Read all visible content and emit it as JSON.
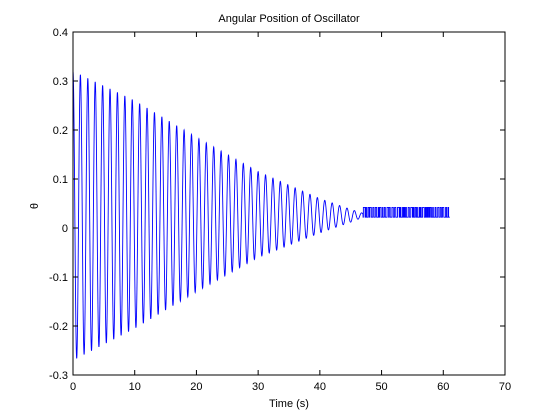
{
  "chart_data": {
    "type": "line",
    "title": "Angular Position of Oscillator",
    "xlabel": "Time (s)",
    "ylabel": "θ",
    "xlim": [
      0,
      70
    ],
    "ylim": [
      -0.3,
      0.4
    ],
    "xticks": [
      "0",
      "10",
      "20",
      "30",
      "40",
      "50",
      "60",
      "70"
    ],
    "xtick_values": [
      0,
      10,
      20,
      30,
      40,
      50,
      60,
      70
    ],
    "yticks": [
      "-0.3",
      "-0.2",
      "-0.1",
      "0",
      "0.1",
      "0.2",
      "0.3",
      "0.4"
    ],
    "ytick_values": [
      -0.3,
      -0.2,
      -0.1,
      0,
      0.1,
      0.2,
      0.3,
      0.4
    ],
    "grid": false,
    "series": [
      {
        "color": "#0000ff",
        "description_values": {
          "t_start": 0,
          "t_end": 61,
          "period": 1.2,
          "initial_max": 0.32,
          "initial_min": -0.27,
          "max_envelope": [
            [
              0,
              0.32
            ],
            [
              10,
              0.26
            ],
            [
              20,
              0.185
            ],
            [
              30,
              0.115
            ],
            [
              40,
              0.06
            ],
            [
              45,
              0.038
            ],
            [
              47,
              0.03
            ]
          ],
          "min_envelope": [
            [
              0,
              -0.27
            ],
            [
              10,
              -0.205
            ],
            [
              20,
              -0.13
            ],
            [
              30,
              -0.06
            ],
            [
              40,
              -0.01
            ],
            [
              45,
              0.012
            ],
            [
              47,
              0.022
            ]
          ],
          "noise_start": 47,
          "noise_low": 0.022,
          "noise_high": 0.042
        }
      }
    ]
  }
}
